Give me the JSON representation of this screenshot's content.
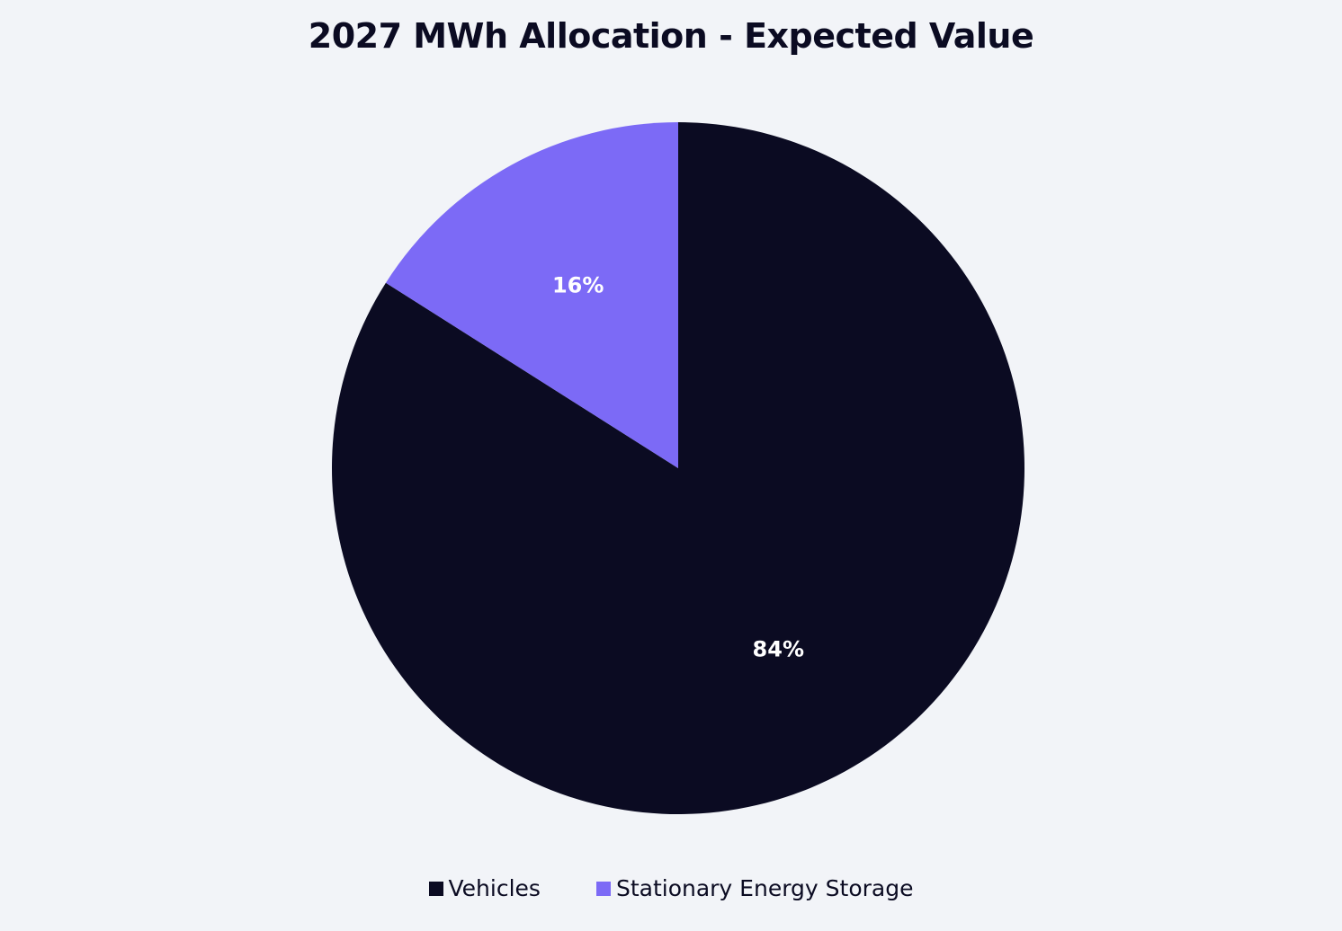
{
  "chart_data": {
    "type": "pie",
    "title": "2027 MWh Allocation - Expected Value",
    "legend_position": "bottom",
    "slices": [
      {
        "name": "Vehicles",
        "value": 84,
        "label": "84%",
        "color": "#0B0B22",
        "label_color": "#FFFFFF"
      },
      {
        "name": "Stationary Energy Storage",
        "value": 16,
        "label": "16%",
        "color": "#7C6AF6",
        "label_color": "#FFFFFF"
      }
    ]
  }
}
